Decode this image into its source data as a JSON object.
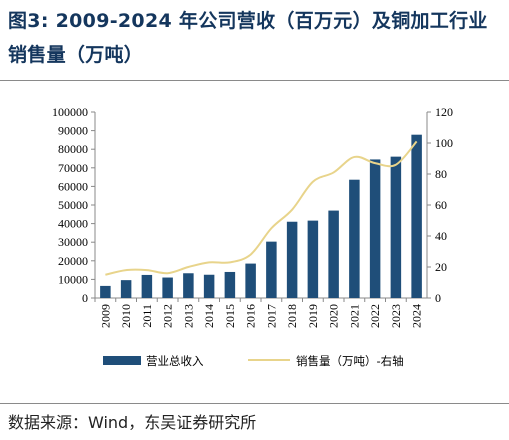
{
  "figure": {
    "title": "图3:  2009-2024 年公司营收（百万元）及铜加工行业销售量（万吨）",
    "source": "数据来源：Wind，东吴证券研究所"
  },
  "chart_data": {
    "type": "bar",
    "categories": [
      "2009",
      "2010",
      "2011",
      "2012",
      "2013",
      "2014",
      "2015",
      "2016",
      "2017",
      "2018",
      "2019",
      "2020",
      "2021",
      "2022",
      "2023",
      "2024"
    ],
    "series": [
      {
        "name": "营业总收入",
        "type": "bar",
        "axis": "left",
        "color": "#1f4e79",
        "values": [
          6500,
          9600,
          12400,
          11000,
          13300,
          12500,
          14000,
          18500,
          30300,
          41000,
          41600,
          47000,
          63600,
          74500,
          76000,
          87800
        ]
      },
      {
        "name": "销售量（万吨）-右轴",
        "type": "line",
        "axis": "right",
        "color": "#e8d48b",
        "values": [
          15,
          18,
          18,
          16,
          20,
          23,
          23,
          28,
          45,
          57,
          75,
          81,
          91,
          87,
          86,
          101
        ]
      }
    ],
    "y_left": {
      "min": 0,
      "max": 100000,
      "step": 10000
    },
    "y_right": {
      "min": 0,
      "max": 120,
      "step": 20
    },
    "legend_position": "bottom",
    "grid": false
  }
}
